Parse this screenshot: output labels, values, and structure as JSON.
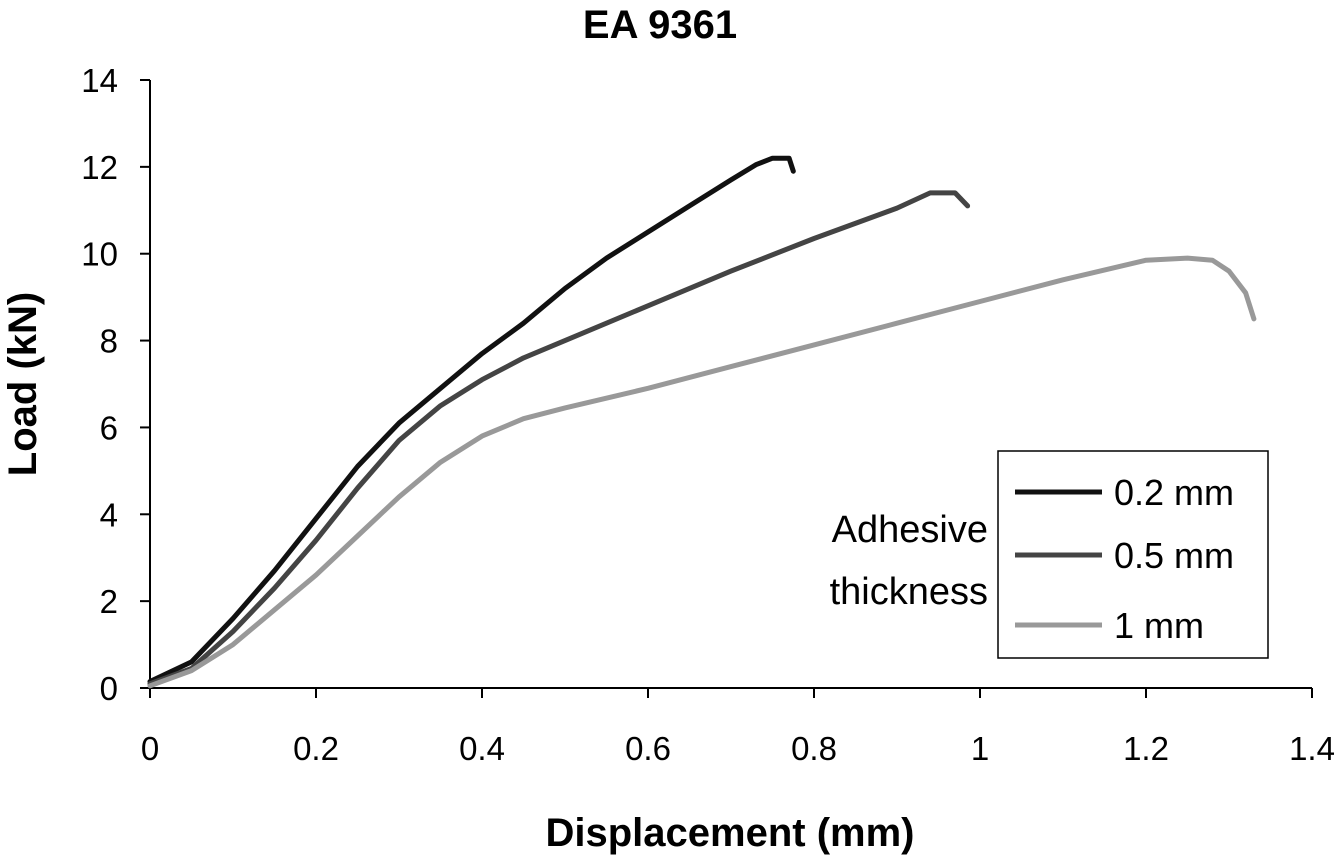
{
  "chart_data": {
    "type": "line",
    "title": "EA 9361",
    "xlabel": "Displacement (mm)",
    "ylabel": "Load (kN)",
    "xlim": [
      0,
      1.4
    ],
    "ylim": [
      0,
      14
    ],
    "x_ticks": [
      "0",
      "0.2",
      "0.4",
      "0.6",
      "0.8",
      "1",
      "1.2",
      "1.4"
    ],
    "y_ticks": [
      "0",
      "2",
      "4",
      "6",
      "8",
      "10",
      "12",
      "14"
    ],
    "grid": false,
    "legend": {
      "title": "Adhesive thickness",
      "title_lines": [
        "Adhesive",
        "thickness"
      ],
      "placement": "bottom-right"
    },
    "series": [
      {
        "name": "0.2 mm",
        "color": "#111111",
        "points": [
          [
            0.0,
            0.15
          ],
          [
            0.05,
            0.6
          ],
          [
            0.1,
            1.6
          ],
          [
            0.15,
            2.7
          ],
          [
            0.2,
            3.9
          ],
          [
            0.25,
            5.1
          ],
          [
            0.3,
            6.1
          ],
          [
            0.35,
            6.9
          ],
          [
            0.4,
            7.7
          ],
          [
            0.45,
            8.4
          ],
          [
            0.5,
            9.2
          ],
          [
            0.55,
            9.9
          ],
          [
            0.6,
            10.5
          ],
          [
            0.65,
            11.1
          ],
          [
            0.7,
            11.7
          ],
          [
            0.73,
            12.05
          ],
          [
            0.75,
            12.2
          ],
          [
            0.77,
            12.2
          ],
          [
            0.775,
            11.9
          ]
        ]
      },
      {
        "name": "0.5 mm",
        "color": "#444444",
        "points": [
          [
            0.0,
            0.1
          ],
          [
            0.05,
            0.45
          ],
          [
            0.1,
            1.3
          ],
          [
            0.15,
            2.3
          ],
          [
            0.2,
            3.4
          ],
          [
            0.25,
            4.6
          ],
          [
            0.3,
            5.7
          ],
          [
            0.35,
            6.5
          ],
          [
            0.4,
            7.1
          ],
          [
            0.45,
            7.6
          ],
          [
            0.5,
            8.0
          ],
          [
            0.6,
            8.8
          ],
          [
            0.7,
            9.6
          ],
          [
            0.8,
            10.35
          ],
          [
            0.9,
            11.05
          ],
          [
            0.94,
            11.4
          ],
          [
            0.97,
            11.4
          ],
          [
            0.985,
            11.1
          ]
        ]
      },
      {
        "name": "1 mm",
        "color": "#999999",
        "points": [
          [
            0.0,
            0.05
          ],
          [
            0.05,
            0.4
          ],
          [
            0.1,
            1.0
          ],
          [
            0.15,
            1.8
          ],
          [
            0.2,
            2.6
          ],
          [
            0.25,
            3.5
          ],
          [
            0.3,
            4.4
          ],
          [
            0.35,
            5.2
          ],
          [
            0.4,
            5.8
          ],
          [
            0.45,
            6.2
          ],
          [
            0.5,
            6.45
          ],
          [
            0.6,
            6.9
          ],
          [
            0.7,
            7.4
          ],
          [
            0.8,
            7.9
          ],
          [
            0.9,
            8.4
          ],
          [
            1.0,
            8.9
          ],
          [
            1.1,
            9.4
          ],
          [
            1.2,
            9.85
          ],
          [
            1.25,
            9.9
          ],
          [
            1.28,
            9.85
          ],
          [
            1.3,
            9.6
          ],
          [
            1.32,
            9.1
          ],
          [
            1.33,
            8.5
          ]
        ]
      }
    ]
  }
}
